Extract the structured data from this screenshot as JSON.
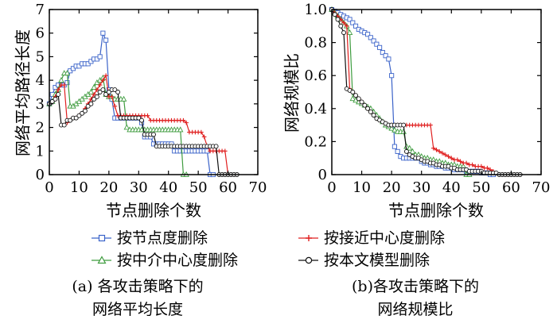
{
  "legend": [
    {
      "name": "按节点度删除",
      "color": "#3b63c9",
      "marker": "square"
    },
    {
      "name": "按中介中心度删除",
      "color": "#3f9c3f",
      "marker": "triangle"
    },
    {
      "name": "按接近中心度删除",
      "color": "#e02020",
      "marker": "plus"
    },
    {
      "name": "按本文模型删除",
      "color": "#111111",
      "marker": "circle"
    }
  ],
  "captions": {
    "a_line1": "(a) 各攻击策略下的",
    "a_line2": "网络平均长度",
    "b_line1": "(b)各攻击策略下的",
    "b_line2": "网络规模比"
  },
  "chart_data": [
    {
      "id": "a",
      "type": "line",
      "title": "",
      "xlabel": "节点删除个数",
      "ylabel": "网络平均路径长度",
      "xlim": [
        0,
        70
      ],
      "ylim": [
        0,
        7
      ],
      "xticks": [
        0,
        10,
        20,
        30,
        40,
        50,
        60,
        70
      ],
      "yticks": [
        0,
        1,
        2,
        3,
        4,
        5,
        6,
        7
      ],
      "xtick_labels": [
        "0",
        "10",
        "20",
        "30",
        "40",
        "50",
        "60",
        "70"
      ],
      "ytick_labels": [
        "0",
        "1",
        "2",
        "3",
        "4",
        "5",
        "6",
        "7"
      ],
      "series": [
        {
          "name": "按节点度删除",
          "color": "#3b63c9",
          "marker": "square",
          "x": [
            0,
            1,
            2,
            3,
            4,
            5,
            6,
            7,
            8,
            9,
            10,
            11,
            12,
            13,
            14,
            15,
            16,
            17,
            18,
            19,
            20,
            21,
            22,
            23,
            24,
            25,
            26,
            27,
            28,
            29,
            30,
            31,
            32,
            33,
            34,
            35,
            36,
            37,
            38,
            39,
            40,
            41,
            42,
            43,
            44,
            45,
            46,
            47,
            48,
            49,
            50,
            51,
            52,
            53,
            54,
            55
          ],
          "y": [
            3.0,
            3.4,
            3.7,
            3.8,
            3.8,
            3.8,
            3.9,
            4.4,
            4.5,
            4.6,
            4.6,
            4.7,
            4.7,
            4.7,
            4.8,
            4.9,
            4.9,
            5.0,
            6.0,
            5.7,
            3.6,
            3.2,
            2.4,
            2.4,
            2.4,
            2.4,
            2.4,
            2.4,
            2.4,
            2.4,
            2.4,
            2.2,
            1.6,
            1.6,
            1.6,
            1.3,
            1.3,
            1.3,
            1.3,
            1.3,
            1.3,
            1.3,
            1.0,
            1.0,
            1.0,
            1.0,
            1.0,
            1.0,
            1.0,
            1.0,
            1.0,
            1.0,
            1.0,
            1.0,
            0,
            0
          ]
        },
        {
          "name": "按中介中心度删除",
          "color": "#3f9c3f",
          "marker": "triangle",
          "x": [
            0,
            1,
            2,
            3,
            4,
            5,
            6,
            7,
            8,
            9,
            10,
            11,
            12,
            13,
            14,
            15,
            16,
            17,
            18,
            19,
            20,
            21,
            22,
            23,
            24,
            25,
            26,
            27,
            28,
            29,
            30,
            31,
            32,
            33,
            34,
            35,
            36,
            37,
            38,
            39,
            40,
            41,
            42,
            43,
            44,
            45,
            46
          ],
          "y": [
            3.0,
            3.1,
            3.4,
            3.6,
            4.0,
            4.3,
            4.3,
            2.9,
            2.9,
            3.0,
            3.1,
            3.2,
            3.3,
            3.4,
            3.5,
            3.7,
            3.9,
            4.0,
            4.1,
            3.4,
            3.3,
            3.3,
            3.2,
            3.2,
            3.2,
            3.2,
            2.0,
            1.9,
            1.9,
            1.9,
            1.9,
            1.9,
            1.9,
            1.9,
            1.9,
            1.9,
            1.9,
            1.9,
            1.9,
            1.9,
            1.9,
            1.9,
            1.9,
            1.9,
            1.9,
            0,
            0
          ]
        },
        {
          "name": "按接近中心度删除",
          "color": "#e02020",
          "marker": "plus",
          "x": [
            0,
            1,
            2,
            3,
            4,
            5,
            6,
            7,
            8,
            9,
            10,
            11,
            12,
            13,
            14,
            15,
            16,
            17,
            18,
            19,
            20,
            21,
            22,
            23,
            24,
            25,
            26,
            27,
            28,
            29,
            30,
            31,
            32,
            33,
            34,
            35,
            36,
            37,
            38,
            39,
            40,
            41,
            42,
            43,
            44,
            45,
            46,
            47,
            48,
            49,
            50,
            51,
            52,
            53,
            54,
            55,
            56,
            57,
            58,
            59,
            60,
            61
          ],
          "y": [
            3.0,
            3.1,
            3.3,
            3.6,
            3.8,
            3.8,
            2.2,
            2.3,
            2.4,
            2.4,
            2.5,
            2.6,
            2.8,
            3.0,
            3.2,
            3.4,
            3.6,
            3.8,
            4.0,
            4.2,
            3.3,
            3.3,
            2.9,
            2.5,
            2.5,
            2.5,
            2.5,
            2.5,
            2.5,
            2.5,
            2.5,
            2.5,
            2.5,
            2.5,
            2.3,
            2.3,
            2.3,
            2.3,
            2.3,
            2.3,
            2.3,
            2.3,
            2.3,
            2.3,
            2.3,
            2.3,
            2.2,
            1.8,
            1.8,
            1.8,
            1.8,
            1.8,
            1.6,
            1.2,
            1.0,
            1.0,
            1.0,
            1.0,
            1.0,
            1.0,
            0,
            0
          ]
        },
        {
          "name": "按本文模型删除",
          "color": "#111111",
          "marker": "circle",
          "x": [
            0,
            1,
            2,
            3,
            4,
            5,
            6,
            7,
            8,
            9,
            10,
            11,
            12,
            13,
            14,
            15,
            16,
            17,
            18,
            19,
            20,
            21,
            22,
            23,
            24,
            25,
            26,
            27,
            28,
            29,
            30,
            31,
            32,
            33,
            34,
            35,
            36,
            37,
            38,
            39,
            40,
            41,
            42,
            43,
            44,
            45,
            46,
            47,
            48,
            49,
            50,
            51,
            52,
            53,
            54,
            55,
            56,
            57,
            58,
            59,
            60,
            61,
            62,
            63
          ],
          "y": [
            3.0,
            3.1,
            3.2,
            3.4,
            2.1,
            2.1,
            2.3,
            2.3,
            2.4,
            2.4,
            2.5,
            2.6,
            2.7,
            2.9,
            3.0,
            3.2,
            3.3,
            3.5,
            3.6,
            3.4,
            3.5,
            3.6,
            3.6,
            3.5,
            2.4,
            2.4,
            2.4,
            2.4,
            2.4,
            2.4,
            2.4,
            2.3,
            1.7,
            1.7,
            1.7,
            1.7,
            1.2,
            1.2,
            1.2,
            1.2,
            1.2,
            1.2,
            1.2,
            1.2,
            1.2,
            1.2,
            1.2,
            1.2,
            1.2,
            1.2,
            1.2,
            1.2,
            1.2,
            1.2,
            1.2,
            1.2,
            1.2,
            0,
            0,
            0,
            0,
            0,
            0,
            0
          ]
        }
      ]
    },
    {
      "id": "b",
      "type": "line",
      "title": "",
      "xlabel": "节点删除个数",
      "ylabel": "网络规模比",
      "xlim": [
        0,
        70
      ],
      "ylim": [
        0,
        1.0
      ],
      "xticks": [
        0,
        10,
        20,
        30,
        40,
        50,
        60,
        70
      ],
      "yticks": [
        0,
        0.2,
        0.4,
        0.6,
        0.8,
        1.0
      ],
      "xtick_labels": [
        "0",
        "10",
        "20",
        "30",
        "40",
        "50",
        "60",
        "70"
      ],
      "ytick_labels": [
        "0",
        "0.2",
        "0.4",
        "0.6",
        "0.8",
        "1.0"
      ],
      "series": [
        {
          "name": "按节点度删除",
          "color": "#3b63c9",
          "marker": "square",
          "x": [
            0,
            1,
            2,
            3,
            4,
            5,
            6,
            7,
            8,
            9,
            10,
            11,
            12,
            13,
            14,
            15,
            16,
            17,
            18,
            19,
            20,
            21,
            22,
            23,
            24,
            25,
            26,
            27,
            28,
            29,
            30,
            31,
            32,
            33,
            34,
            35,
            36,
            37,
            38,
            39,
            40,
            41,
            42,
            43,
            44,
            45,
            46,
            47,
            48,
            49,
            50,
            51,
            52,
            53,
            54
          ],
          "y": [
            1.0,
            0.99,
            0.98,
            0.97,
            0.96,
            0.95,
            0.94,
            0.92,
            0.9,
            0.88,
            0.87,
            0.86,
            0.85,
            0.83,
            0.81,
            0.79,
            0.77,
            0.74,
            0.72,
            0.7,
            0.6,
            0.17,
            0.14,
            0.11,
            0.1,
            0.1,
            0.1,
            0.1,
            0.1,
            0.1,
            0.08,
            0.07,
            0.07,
            0.06,
            0.06,
            0.05,
            0.05,
            0.05,
            0.04,
            0.04,
            0.04,
            0.03,
            0.03,
            0.03,
            0.03,
            0.02,
            0.02,
            0.02,
            0.02,
            0.02,
            0.01,
            0.01,
            0.01,
            0,
            0
          ]
        },
        {
          "name": "按中介中心度删除",
          "color": "#3f9c3f",
          "marker": "triangle",
          "x": [
            0,
            1,
            2,
            3,
            4,
            5,
            6,
            7,
            8,
            9,
            10,
            11,
            12,
            13,
            14,
            15,
            16,
            17,
            18,
            19,
            20,
            21,
            22,
            23,
            24,
            25,
            26,
            27,
            28,
            29,
            30,
            31,
            32,
            33,
            34,
            35,
            36,
            37,
            38,
            39,
            40,
            41,
            42,
            43,
            44,
            45,
            46
          ],
          "y": [
            1.0,
            0.98,
            0.96,
            0.94,
            0.92,
            0.9,
            0.86,
            0.46,
            0.45,
            0.44,
            0.43,
            0.42,
            0.41,
            0.4,
            0.38,
            0.36,
            0.34,
            0.32,
            0.3,
            0.29,
            0.28,
            0.27,
            0.26,
            0.26,
            0.26,
            0.17,
            0.16,
            0.14,
            0.12,
            0.12,
            0.11,
            0.1,
            0.1,
            0.09,
            0.09,
            0.08,
            0.08,
            0.07,
            0.07,
            0.06,
            0.06,
            0.06,
            0.05,
            0.05,
            0.05,
            0.0,
            0.0
          ]
        },
        {
          "name": "按接近中心度删除",
          "color": "#e02020",
          "marker": "plus",
          "x": [
            0,
            1,
            2,
            3,
            4,
            5,
            6,
            7,
            8,
            9,
            10,
            11,
            12,
            13,
            14,
            15,
            16,
            17,
            18,
            19,
            20,
            21,
            22,
            23,
            24,
            25,
            26,
            27,
            28,
            29,
            30,
            31,
            32,
            33,
            34,
            35,
            36,
            37,
            38,
            39,
            40,
            41,
            42,
            43,
            44,
            45,
            46,
            47,
            48,
            49,
            50,
            51,
            52,
            53,
            54,
            55,
            56,
            57,
            58,
            59,
            60,
            61
          ],
          "y": [
            1.0,
            0.98,
            0.96,
            0.94,
            0.92,
            0.9,
            0.52,
            0.5,
            0.48,
            0.46,
            0.44,
            0.42,
            0.4,
            0.38,
            0.36,
            0.34,
            0.33,
            0.32,
            0.31,
            0.3,
            0.3,
            0.3,
            0.3,
            0.3,
            0.3,
            0.3,
            0.3,
            0.3,
            0.3,
            0.3,
            0.3,
            0.3,
            0.3,
            0.3,
            0.16,
            0.15,
            0.14,
            0.13,
            0.12,
            0.11,
            0.1,
            0.09,
            0.09,
            0.08,
            0.07,
            0.07,
            0.06,
            0.06,
            0.05,
            0.05,
            0.05,
            0.04,
            0.04,
            0.03,
            0.02,
            0.01,
            0,
            0,
            0,
            0,
            0,
            0
          ]
        },
        {
          "name": "按本文模型删除",
          "color": "#111111",
          "marker": "circle",
          "x": [
            0,
            1,
            2,
            3,
            4,
            5,
            6,
            7,
            8,
            9,
            10,
            11,
            12,
            13,
            14,
            15,
            16,
            17,
            18,
            19,
            20,
            21,
            22,
            23,
            24,
            25,
            26,
            27,
            28,
            29,
            30,
            31,
            32,
            33,
            34,
            35,
            36,
            37,
            38,
            39,
            40,
            41,
            42,
            43,
            44,
            45,
            46,
            47,
            48,
            49,
            50,
            51,
            52,
            53,
            54,
            55,
            56,
            57,
            58,
            59,
            60,
            61,
            62,
            63
          ],
          "y": [
            1.0,
            0.97,
            0.94,
            0.9,
            0.86,
            0.52,
            0.51,
            0.5,
            0.48,
            0.46,
            0.44,
            0.42,
            0.4,
            0.38,
            0.36,
            0.34,
            0.33,
            0.32,
            0.31,
            0.3,
            0.3,
            0.3,
            0.3,
            0.3,
            0.3,
            0.14,
            0.12,
            0.11,
            0.1,
            0.1,
            0.09,
            0.08,
            0.08,
            0.07,
            0.07,
            0.06,
            0.06,
            0.05,
            0.05,
            0.05,
            0.04,
            0.04,
            0.03,
            0.03,
            0.03,
            0.03,
            0.02,
            0.02,
            0.02,
            0.02,
            0.02,
            0.01,
            0.01,
            0.01,
            0.01,
            0.01,
            0.0,
            0.0,
            0.0,
            0.0,
            0.0,
            0.0,
            0.0,
            0.0
          ]
        }
      ]
    }
  ]
}
